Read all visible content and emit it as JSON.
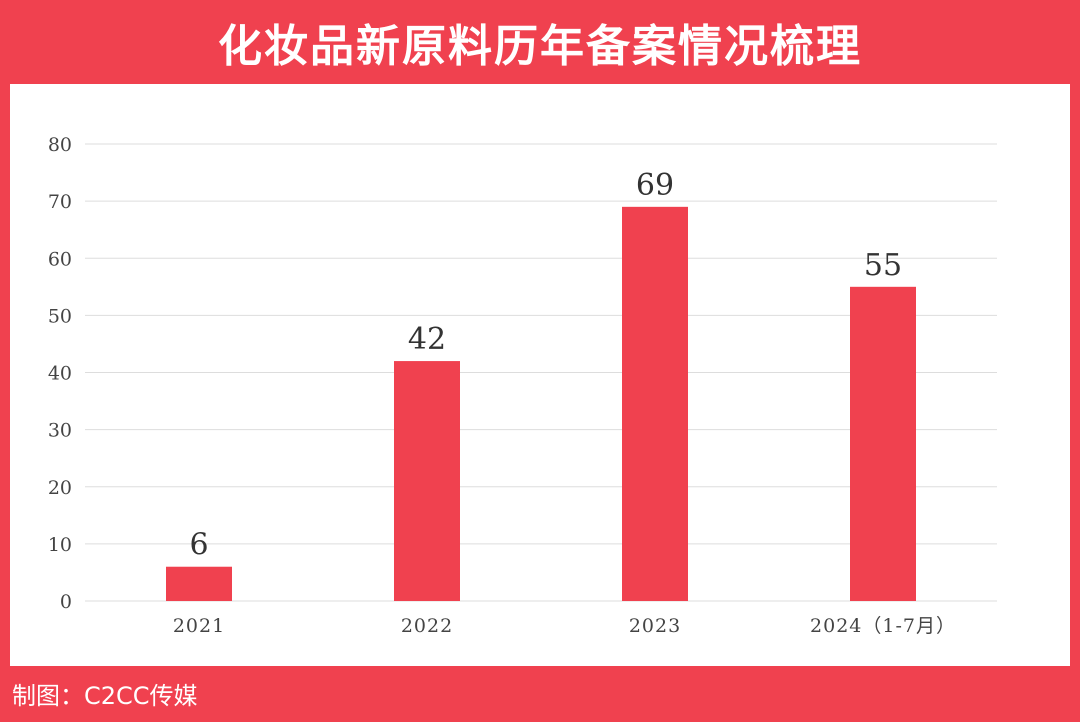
{
  "title": "化妆品新原料历年备案情况梳理",
  "footer": "制图：C2CC传媒",
  "colors": {
    "background": "#f0414f",
    "bar": "#f0414f",
    "panel": "#ffffff",
    "grid": "#dddddd",
    "tick_text": "#444444",
    "value_text": "#333333"
  },
  "chart_data": {
    "type": "bar",
    "categories": [
      "2021",
      "2022",
      "2023",
      "2024（1-7月）"
    ],
    "values": [
      6,
      42,
      69,
      55
    ],
    "yticks": [
      0,
      10,
      20,
      30,
      40,
      50,
      60,
      70,
      80
    ],
    "ylim": [
      0,
      80
    ],
    "grid": true,
    "legend": "none",
    "data_labels": [
      "6",
      "42",
      "69",
      "55"
    ]
  }
}
